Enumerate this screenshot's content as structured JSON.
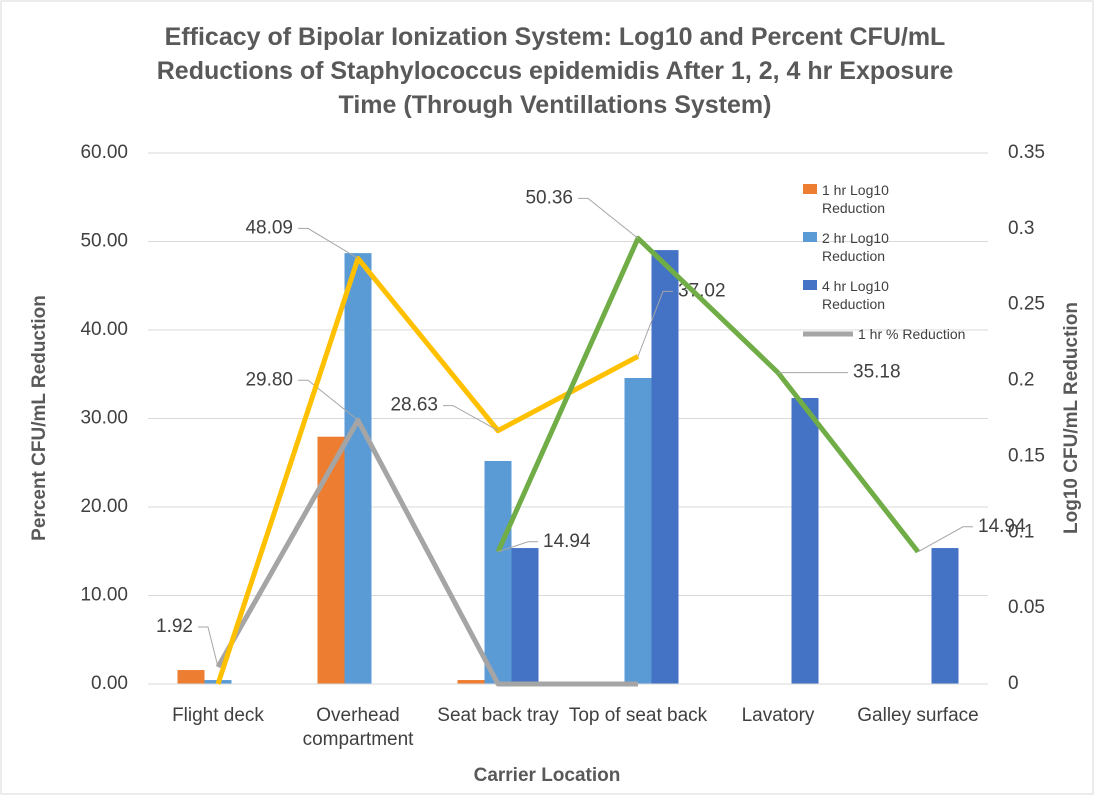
{
  "chart_data": {
    "type": "bar",
    "title": "Efficacy of Bipolar Ionization System: Log10 and Percent CFU/mL Reductions of Staphylococcus epidemidis After 1, 2, 4 hr Exposure Time (Through Ventillations System)",
    "x_label": "Carrier Location",
    "y_label": "Percent CFU/mL Reduction",
    "y2_label": "Log10 CFU/mL Reduction",
    "categories": [
      "Flight deck",
      "Overhead compartment",
      "Seat back tray",
      "Top of seat back",
      "Lavatory",
      "Galley surface"
    ],
    "ylim": [
      0,
      60
    ],
    "yticks": [
      {
        "value": 0,
        "label": "0.00"
      },
      {
        "value": 10,
        "label": "10.00"
      },
      {
        "value": 20,
        "label": "20.00"
      },
      {
        "value": 30,
        "label": "30.00"
      },
      {
        "value": 40,
        "label": "40.00"
      },
      {
        "value": 50,
        "label": "50.00"
      },
      {
        "value": 60,
        "label": "60.00"
      }
    ],
    "y2lim": [
      0,
      0.35
    ],
    "y2ticks": [
      0,
      0.05,
      0.1,
      0.15,
      0.2,
      0.25,
      0.3,
      0.35
    ],
    "grid": true,
    "legend": "top-right",
    "series": [
      {
        "name": "1 hr Log10 Reduction",
        "type": "bar",
        "axis": "y2",
        "color": "#ed7d31",
        "values": [
          0.0092,
          0.163,
          0.0026,
          0.001,
          null,
          null
        ]
      },
      {
        "name": "2 hr Log10 Reduction",
        "type": "bar",
        "axis": "y2",
        "color": "#5b9bd5",
        "values": [
          0.0026,
          0.284,
          0.147,
          0.2017,
          null,
          null
        ]
      },
      {
        "name": "4 hr Log10 Reduction",
        "type": "bar",
        "axis": "y2",
        "color": "#4472c4",
        "values": [
          null,
          null,
          0.0896,
          0.286,
          0.1885,
          0.0896
        ]
      },
      {
        "name": "1 hr % Reduction",
        "type": "line",
        "color": "#a5a5a5",
        "values": [
          1.92,
          29.8,
          0,
          0,
          null,
          null
        ],
        "value_labels": [
          "1.92",
          "29.80",
          null,
          null,
          null,
          null
        ]
      },
      {
        "type": "line",
        "color": "#ffc000",
        "values": [
          0,
          48.09,
          28.63,
          37.02,
          null,
          null
        ],
        "value_labels": [
          null,
          "48.09",
          "28.63",
          "37.02",
          null,
          null
        ]
      },
      {
        "type": "line",
        "color": "#70ad47",
        "values": [
          null,
          null,
          14.94,
          50.36,
          35.18,
          14.94
        ],
        "value_labels": [
          null,
          null,
          "14.94",
          "50.36",
          "35.18",
          "14.94"
        ]
      }
    ]
  }
}
